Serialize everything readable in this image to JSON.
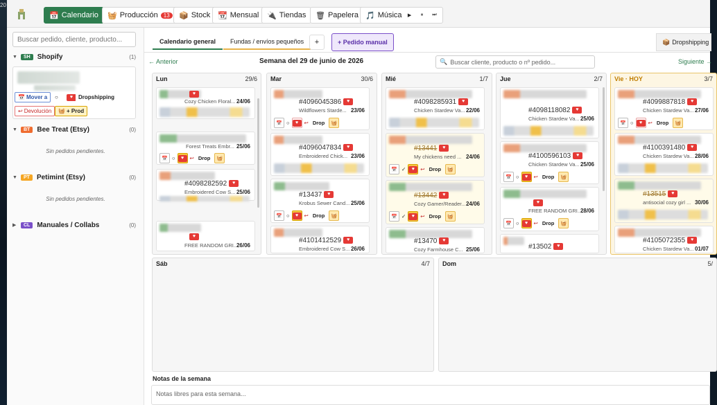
{
  "desktop": {
    "clock": "20"
  },
  "nav": {
    "calendario": "Calendario",
    "produccion": "Producción",
    "produccion_badge": "13",
    "stock": "Stock",
    "mensual": "Mensual",
    "tiendas": "Tiendas",
    "papelera": "Papelera",
    "musica": "Música",
    "play": "▶",
    "pause": "⏸",
    "next": "⏭"
  },
  "sidebar": {
    "search_placeholder": "Buscar pedido, cliente, producto...",
    "groups": [
      {
        "tag": "SH",
        "name": "Shopify",
        "count": "(1)",
        "color": "#2e7d4f"
      },
      {
        "tag": "BT",
        "name": "Bee Treat (Etsy)",
        "count": "(0)",
        "color": "#ef6c2f",
        "empty": "Sin pedidos pendientes."
      },
      {
        "tag": "PT",
        "name": "Petimint (Etsy)",
        "count": "(0)",
        "color": "#f5a623",
        "empty": "Sin pedidos pendientes."
      },
      {
        "tag": "CL",
        "name": "Manuales / Collabs",
        "count": "(0)",
        "color": "#7a4fc9"
      }
    ],
    "card": {
      "move": "Mover a",
      "dropshipping": "Dropshipping",
      "devolucion": "Devolución",
      "prod": "+ Prod"
    }
  },
  "tabs": {
    "general": "Calendario general",
    "fundas": "Fundas / envíos pequeños",
    "plus": "+",
    "manual": "+ Pedido manual",
    "dropshipping": "Dropshipping"
  },
  "week": {
    "prev": "← Anterior",
    "title": "Semana del 29 de junio de 2026",
    "search_placeholder": "Buscar cliente, producto o nº pedido...",
    "next": "Siguiente →"
  },
  "days": [
    {
      "name": "Lun",
      "date": "29/6"
    },
    {
      "name": "Mar",
      "date": "30/6"
    },
    {
      "name": "Mié",
      "date": "1/7"
    },
    {
      "name": "Jue",
      "date": "2/7"
    },
    {
      "name": "Vie · HOY",
      "date": "3/7"
    }
  ],
  "orders": {
    "lun": [
      {
        "product": "Cozy Chicken Floral...",
        "date": "24/06"
      },
      {
        "product": "Forest Treats Embr...",
        "date": "25/06"
      },
      {
        "id": "#4098282592",
        "product": "Embroidered Cow S...",
        "date": "25/06"
      },
      {
        "product": "FREE RANDOM GRI...",
        "date": "26/06"
      }
    ],
    "mar": [
      {
        "id": "#4096045386",
        "product": "Wildflowers Starde...",
        "date": "23/06"
      },
      {
        "id": "#4096047834",
        "product": "Embroidered Chick...",
        "date": "23/06"
      },
      {
        "id": "#13437",
        "product": "Krobus Sewer Cand...",
        "date": "25/06"
      },
      {
        "id": "#4101412529",
        "product": "Embroidered Cow S...",
        "date": "26/06"
      }
    ],
    "mie": [
      {
        "id": "#4098285931",
        "product": "Chicken Stardew Va...",
        "date": "22/06"
      },
      {
        "id": "#13441",
        "product": "My chickens need ...",
        "date": "24/06"
      },
      {
        "id": "#13442",
        "product": "Cozy Gamer/Reader...",
        "date": "24/06"
      },
      {
        "id": "#13470",
        "product": "Cozy Farmhouse C...",
        "date": "25/06"
      }
    ],
    "jue": [
      {
        "id": "#4098118082",
        "product": "Chicken Stardew Va...",
        "date": "25/06"
      },
      {
        "id": "#4100596103",
        "product": "Chicken Stardew Va...",
        "date": "25/06"
      },
      {
        "product": "FREE RANDOM GRI...",
        "date": "28/06"
      },
      {
        "id": "#13502"
      }
    ],
    "vie": [
      {
        "id": "#4099887818",
        "product": "Chicken Stardew Va...",
        "date": "27/06"
      },
      {
        "id": "#4100391480",
        "product": "Chicken Stardew Va...",
        "date": "28/06"
      },
      {
        "id": "#13515",
        "product": "antisocial cozy girl ...",
        "date": "30/06"
      },
      {
        "id": "#4105072355",
        "product": "Chicken Stardew Va...",
        "date": "01/07"
      }
    ]
  },
  "row": {
    "drop": "Drop",
    "check": "✓",
    "circle": "○",
    "ret": "↩"
  },
  "weekend": [
    {
      "name": "Sáb",
      "date": "4/7"
    },
    {
      "name": "Dom",
      "date": "5/"
    }
  ],
  "notes": {
    "label": "Notas de la semana",
    "placeholder": "Notas libres para esta semana..."
  }
}
